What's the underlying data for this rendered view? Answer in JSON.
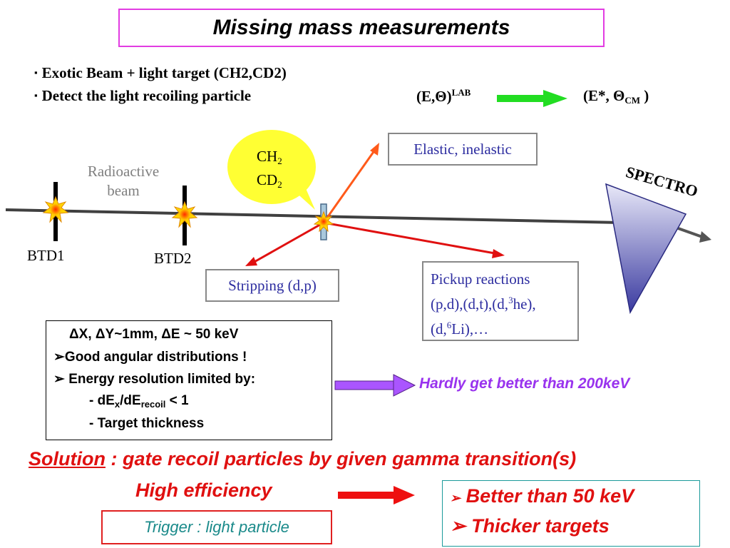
{
  "title": "Missing mass measurements",
  "bullets": {
    "b1": "Exotic Beam +  light target (CH2,CD2)",
    "b2": "Detect the light recoiling particle",
    "marker": "▪"
  },
  "kinematics": {
    "lab_base": "(E,Θ)",
    "lab_sup": "LAB",
    "cm_base": "(E*, Θ",
    "cm_sub": "CM",
    "cm_close": " )",
    "arrow_color": "#22dd22"
  },
  "diagram": {
    "radioactive_1": "Radioactive",
    "radioactive_2": "beam",
    "btd1": "BTD1",
    "btd2": "BTD2",
    "target_ch": "CH",
    "target_cd": "CD",
    "target_sub": "2",
    "elastic": "Elastic, inelastic",
    "spectro": "SPECTRO",
    "stripping": "Stripping (d,p)",
    "pickup_1": "Pickup reactions",
    "pickup_2": "(p,d),(d,t),(d,",
    "pickup_2_sup": "3",
    "pickup_2_end": "he),",
    "pickup_3": "(d,",
    "pickup_3_sup": "6",
    "pickup_3_end": "Li),…"
  },
  "resolution": {
    "line1": "ΔX, ΔY~1mm, ΔE ~ 50 keV",
    "line2": "Good angular distributions !",
    "line3": "Energy resolution limited by:",
    "line4_a": "- dE",
    "line4_sub1": "x",
    "line4_b": "/dE",
    "line4_sub2": "recoil",
    "line4_c": "  < 1",
    "line5": "- Target thickness",
    "arrow_marker": "➢"
  },
  "hardly": "Hardly get better than 200keV",
  "solution": {
    "underlined": "Solution",
    "rest": " : gate recoil particles by given gamma transition(s)",
    "line2": "High efficiency"
  },
  "trigger": "Trigger : light particle",
  "outcomes": {
    "better": "Better than 50 keV",
    "thicker": "Thicker targets",
    "marker": "➢"
  },
  "colors": {
    "title_border": "#e23ce2",
    "red_arrow": "#e01010",
    "purple": "#9933ee",
    "teal": "#1a8a8a",
    "spectro_top": "#e8e8f8",
    "spectro_bottom": "#3a3aa0",
    "target_ellipse": "#ffff33"
  }
}
